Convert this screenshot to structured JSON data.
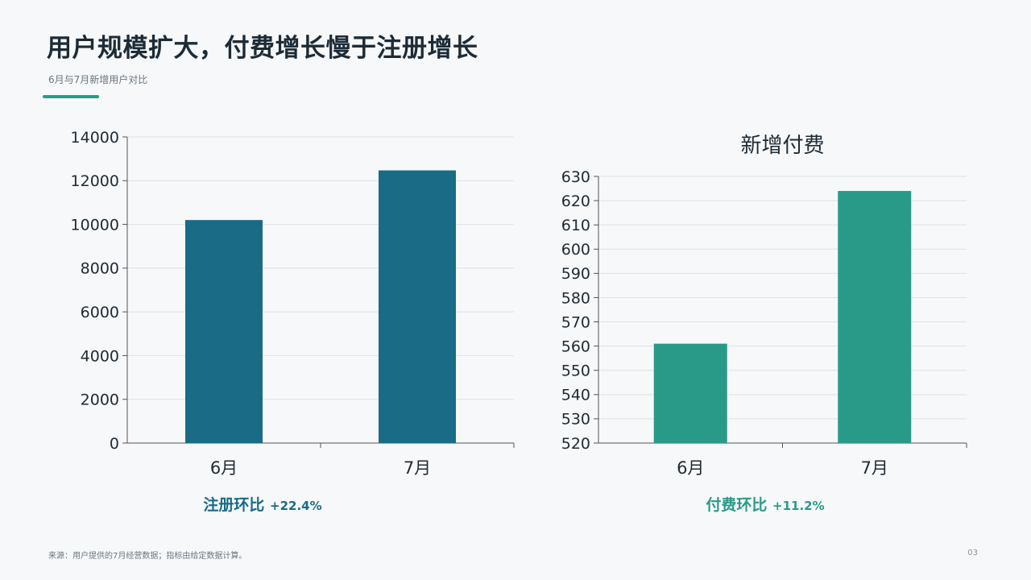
{
  "header": {
    "title": "用户规模扩大，付费增长慢于注册增长",
    "subtitle": "6月与7月新增用户对比"
  },
  "stats": {
    "left_label": "注册环比",
    "left_value": "+22.4%",
    "right_label": "付费环比",
    "right_value": "+11.2%"
  },
  "footer": {
    "source": "来源：用户提供的7月经营数据；指标由给定数据计算。",
    "page_number": "03"
  },
  "colors": {
    "registration": "#1a6b86",
    "paid": "#2a9a88"
  },
  "chart_data": [
    {
      "type": "bar",
      "title": "",
      "categories": [
        "6月",
        "7月"
      ],
      "series": [
        {
          "values": [
            10200,
            12470
          ]
        }
      ],
      "ylim": [
        0,
        14000
      ],
      "yticks": [
        0,
        2000,
        4000,
        6000,
        8000,
        10000,
        12000,
        14000
      ],
      "grid": true,
      "color": "#1a6b86"
    },
    {
      "type": "bar",
      "title": "新增付费",
      "categories": [
        "6月",
        "7月"
      ],
      "series": [
        {
          "values": [
            561,
            624
          ]
        }
      ],
      "ylim": [
        520,
        630
      ],
      "yticks": [
        520,
        530,
        540,
        550,
        560,
        570,
        580,
        590,
        600,
        610,
        620,
        630
      ],
      "grid": true,
      "color": "#2a9a88"
    }
  ]
}
